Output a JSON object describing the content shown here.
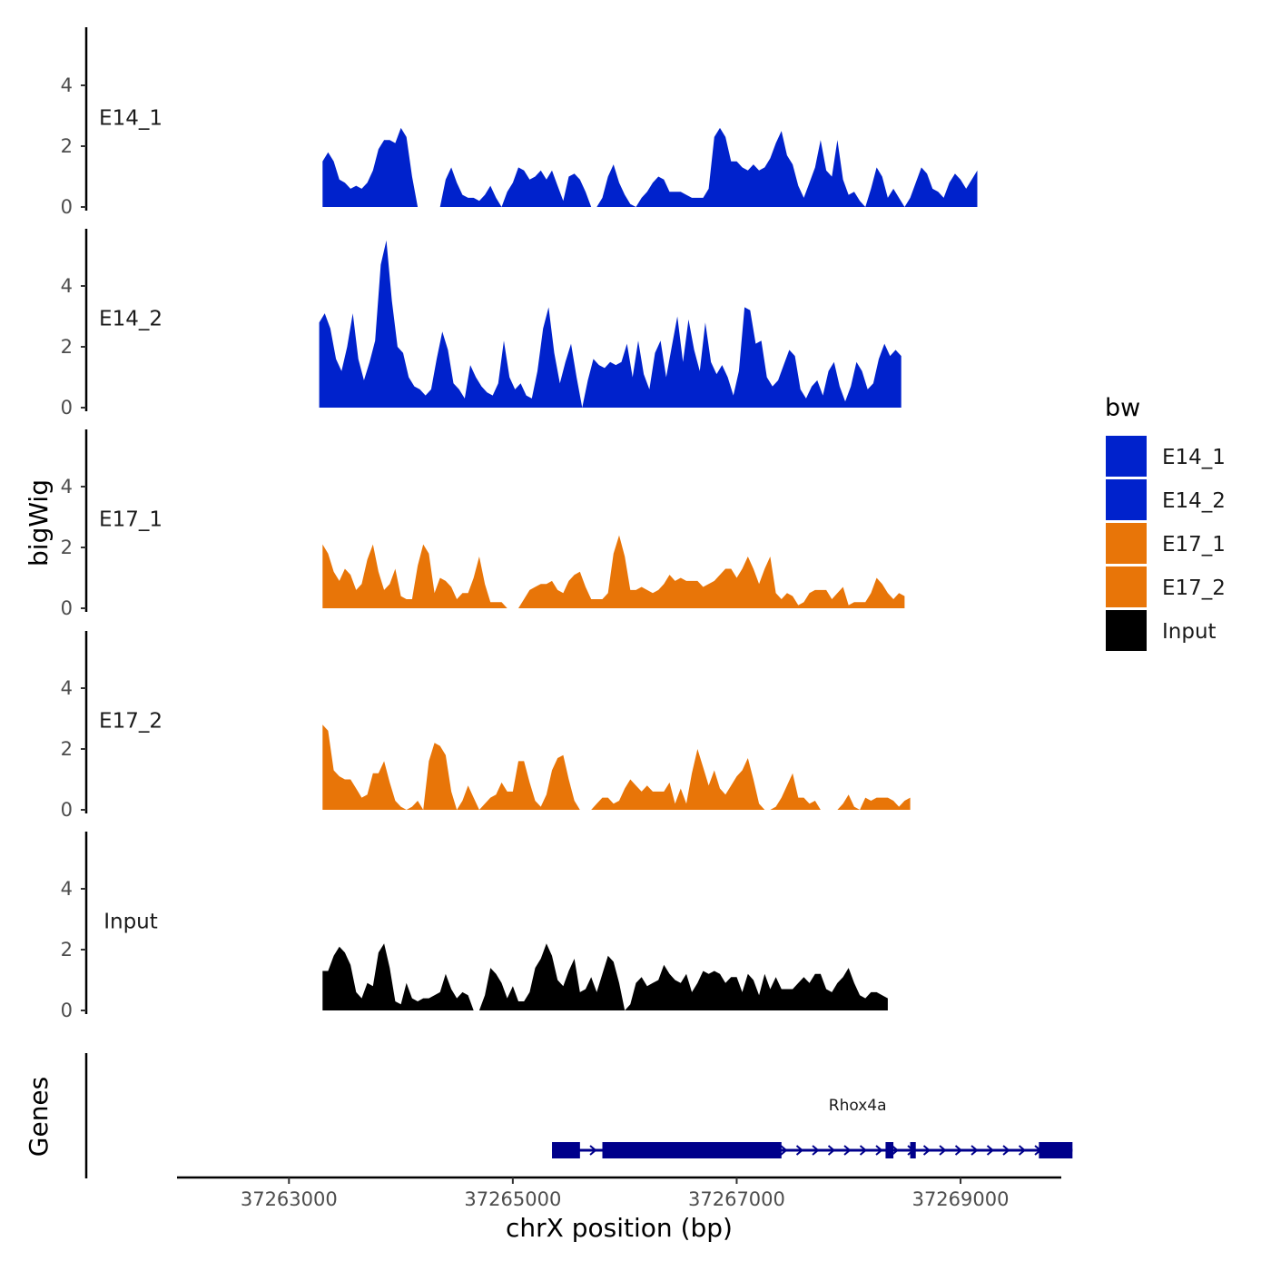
{
  "chart_data": {
    "type": "area",
    "ylabel": "bigWig",
    "genes_label": "Genes",
    "xlabel": "chrX position (bp)",
    "xlim": [
      37262000,
      37269900
    ],
    "x_ticks": [
      37263000,
      37265000,
      37267000,
      37269000
    ],
    "x_tick_labels": [
      "37263000",
      "37265000",
      "37267000",
      "37269000"
    ],
    "ylim": [
      0,
      6
    ],
    "y_ticks": [
      0,
      2,
      4
    ],
    "y_tick_labels": [
      "0",
      "2",
      "4"
    ],
    "legend": {
      "title": "bw",
      "position": "right",
      "entries": [
        {
          "label": "E14_1",
          "color": "#0022CC"
        },
        {
          "label": "E14_2",
          "color": "#0022CC"
        },
        {
          "label": "E17_1",
          "color": "#E87508"
        },
        {
          "label": "E17_2",
          "color": "#E87508"
        },
        {
          "label": "Input",
          "color": "#000000"
        }
      ]
    },
    "series": [
      {
        "name": "E14_1",
        "color": "#0022CC",
        "x_start": 37263300,
        "step": 50,
        "values": [
          1.5,
          1.8,
          1.5,
          0.9,
          0.8,
          0.6,
          0.7,
          0.6,
          0.8,
          1.2,
          1.9,
          2.2,
          2.2,
          2.1,
          2.6,
          2.3,
          1.0,
          0,
          0,
          0,
          0,
          0,
          0.9,
          1.3,
          0.8,
          0.4,
          0.3,
          0.3,
          0.2,
          0.4,
          0.7,
          0.3,
          0,
          0.5,
          0.8,
          1.3,
          1.2,
          0.9,
          1.0,
          1.2,
          0.9,
          1.2,
          0.7,
          0.2,
          1.0,
          1.1,
          0.9,
          0.5,
          0,
          0,
          0.3,
          1.0,
          1.4,
          0.8,
          0.4,
          0.1,
          0,
          0.3,
          0.5,
          0.8,
          1.0,
          0.9,
          0.5,
          0.5,
          0.5,
          0.4,
          0.3,
          0.3,
          0.3,
          0.6,
          2.3,
          2.6,
          2.3,
          1.5,
          1.5,
          1.3,
          1.2,
          1.4,
          1.2,
          1.3,
          1.6,
          2.1,
          2.5,
          1.7,
          1.4,
          0.7,
          0.3,
          0.8,
          1.3,
          2.2,
          1.2,
          1.0,
          2.2,
          0.9,
          0.4,
          0.5,
          0.2,
          0,
          0.6,
          1.3,
          1.0,
          0.3,
          0.6,
          0.3,
          0,
          0.3,
          0.8,
          1.3,
          1.1,
          0.6,
          0.5,
          0.3,
          0.8,
          1.1,
          0.9,
          0.6,
          0.9,
          1.2
        ]
      },
      {
        "name": "E14_2",
        "color": "#0022CC",
        "x_start": 37263270,
        "step": 50,
        "values": [
          2.8,
          3.1,
          2.6,
          1.6,
          1.2,
          2.0,
          3.1,
          1.6,
          0.9,
          1.5,
          2.2,
          4.7,
          5.5,
          3.5,
          2.0,
          1.8,
          1.0,
          0.7,
          0.6,
          0.4,
          0.6,
          1.6,
          2.5,
          1.9,
          0.8,
          0.6,
          0.3,
          1.4,
          1.0,
          0.7,
          0.5,
          0.4,
          0.8,
          2.2,
          1.0,
          0.6,
          0.8,
          0.4,
          0.3,
          1.2,
          2.6,
          3.3,
          1.8,
          0.8,
          1.5,
          2.1,
          1.0,
          0,
          0.9,
          1.6,
          1.4,
          1.3,
          1.5,
          1.4,
          1.5,
          2.1,
          1.0,
          2.2,
          1.1,
          0.6,
          1.8,
          2.2,
          1.0,
          2.0,
          3.0,
          1.5,
          2.9,
          1.9,
          1.2,
          2.8,
          1.5,
          1.1,
          1.4,
          1.0,
          0.4,
          1.2,
          3.3,
          3.2,
          2.1,
          2.2,
          1.0,
          0.7,
          0.9,
          1.4,
          1.9,
          1.7,
          0.6,
          0.3,
          0.7,
          0.9,
          0.4,
          1.2,
          1.5,
          0.7,
          0.2,
          0.7,
          1.5,
          1.2,
          0.6,
          0.8,
          1.6,
          2.1,
          1.7,
          1.9,
          1.7
        ]
      },
      {
        "name": "E17_1",
        "color": "#E87508",
        "x_start": 37263300,
        "step": 50,
        "values": [
          2.1,
          1.8,
          1.2,
          0.9,
          1.3,
          1.1,
          0.6,
          0.8,
          1.6,
          2.1,
          1.2,
          0.6,
          0.8,
          1.3,
          0.4,
          0.3,
          0.3,
          1.4,
          2.1,
          1.8,
          0.5,
          1.0,
          0.9,
          0.7,
          0.3,
          0.5,
          0.5,
          1.0,
          1.7,
          0.8,
          0.2,
          0.2,
          0.2,
          0,
          0,
          0,
          0.3,
          0.6,
          0.7,
          0.8,
          0.8,
          0.9,
          0.6,
          0.5,
          0.9,
          1.1,
          1.2,
          0.7,
          0.3,
          0.3,
          0.3,
          0.5,
          1.8,
          2.4,
          1.7,
          0.6,
          0.6,
          0.7,
          0.6,
          0.5,
          0.6,
          0.8,
          1.1,
          0.9,
          1.0,
          0.9,
          0.9,
          0.9,
          0.7,
          0.8,
          0.9,
          1.1,
          1.3,
          1.3,
          1.0,
          1.3,
          1.7,
          1.3,
          0.8,
          1.3,
          1.7,
          0.5,
          0.3,
          0.5,
          0.4,
          0.1,
          0.2,
          0.5,
          0.6,
          0.6,
          0.6,
          0.3,
          0.5,
          0.7,
          0.1,
          0.2,
          0.2,
          0.2,
          0.5,
          1.0,
          0.8,
          0.5,
          0.3,
          0.5,
          0.4
        ]
      },
      {
        "name": "E17_2",
        "color": "#E87508",
        "x_start": 37263300,
        "step": 50,
        "values": [
          2.8,
          2.6,
          1.3,
          1.1,
          1.0,
          1.0,
          0.7,
          0.4,
          0.5,
          1.2,
          1.2,
          1.6,
          0.9,
          0.3,
          0.1,
          0,
          0.1,
          0.3,
          0,
          1.6,
          2.2,
          2.1,
          1.8,
          0.6,
          0,
          0.3,
          0.8,
          0.4,
          0,
          0.2,
          0.4,
          0.5,
          0.9,
          0.6,
          0.6,
          1.6,
          1.6,
          0.9,
          0.3,
          0.1,
          0.5,
          1.3,
          1.7,
          1.8,
          1.0,
          0.3,
          0,
          0,
          0,
          0.2,
          0.4,
          0.4,
          0.2,
          0.3,
          0.7,
          1.0,
          0.8,
          0.6,
          0.8,
          0.6,
          0.6,
          0.6,
          0.9,
          0.2,
          0.7,
          0.2,
          1.2,
          2.0,
          1.4,
          0.8,
          1.3,
          0.7,
          0.5,
          0.8,
          1.1,
          1.3,
          1.7,
          1.0,
          0.2,
          0,
          0,
          0.1,
          0.4,
          0.8,
          1.2,
          0.4,
          0.4,
          0.2,
          0.3,
          0,
          0,
          0,
          0,
          0.2,
          0.5,
          0.1,
          0,
          0.4,
          0.3,
          0.4,
          0.4,
          0.4,
          0.3,
          0.1,
          0.3,
          0.4
        ]
      },
      {
        "name": "Input",
        "color": "#000000",
        "x_start": 37263300,
        "step": 50,
        "values": [
          1.3,
          1.3,
          1.8,
          2.1,
          1.9,
          1.5,
          0.6,
          0.4,
          0.9,
          0.8,
          1.9,
          2.2,
          1.4,
          0.3,
          0.2,
          0.9,
          0.4,
          0.3,
          0.4,
          0.4,
          0.5,
          0.6,
          1.2,
          0.7,
          0.4,
          0.6,
          0.5,
          0,
          0,
          0.5,
          1.4,
          1.2,
          0.9,
          0.4,
          0.8,
          0.3,
          0.3,
          0.6,
          1.4,
          1.7,
          2.2,
          1.8,
          1.0,
          0.8,
          1.3,
          1.7,
          0.6,
          0.7,
          1.1,
          0.6,
          1.2,
          1.8,
          1.6,
          0.9,
          0,
          0.2,
          0.9,
          1.1,
          0.8,
          0.9,
          1.0,
          1.5,
          1.2,
          1.0,
          0.9,
          1.2,
          0.6,
          0.9,
          1.3,
          1.2,
          1.3,
          1.2,
          0.9,
          1.1,
          1.1,
          0.6,
          1.2,
          1.0,
          0.5,
          1.2,
          0.7,
          1.1,
          0.7,
          0.7,
          0.7,
          0.9,
          1.1,
          0.9,
          1.2,
          1.2,
          0.7,
          0.6,
          0.9,
          1.1,
          1.4,
          0.9,
          0.5,
          0.4,
          0.6,
          0.6,
          0.5,
          0.4
        ]
      }
    ],
    "genes": [
      {
        "name": "Rhox4a",
        "start": 37265350,
        "end": 37270000,
        "exons": [
          [
            37265350,
            37265600
          ],
          [
            37265800,
            37267400
          ],
          [
            37268330,
            37268400
          ],
          [
            37268550,
            37268600
          ],
          [
            37269700,
            37270000
          ]
        ]
      }
    ]
  }
}
